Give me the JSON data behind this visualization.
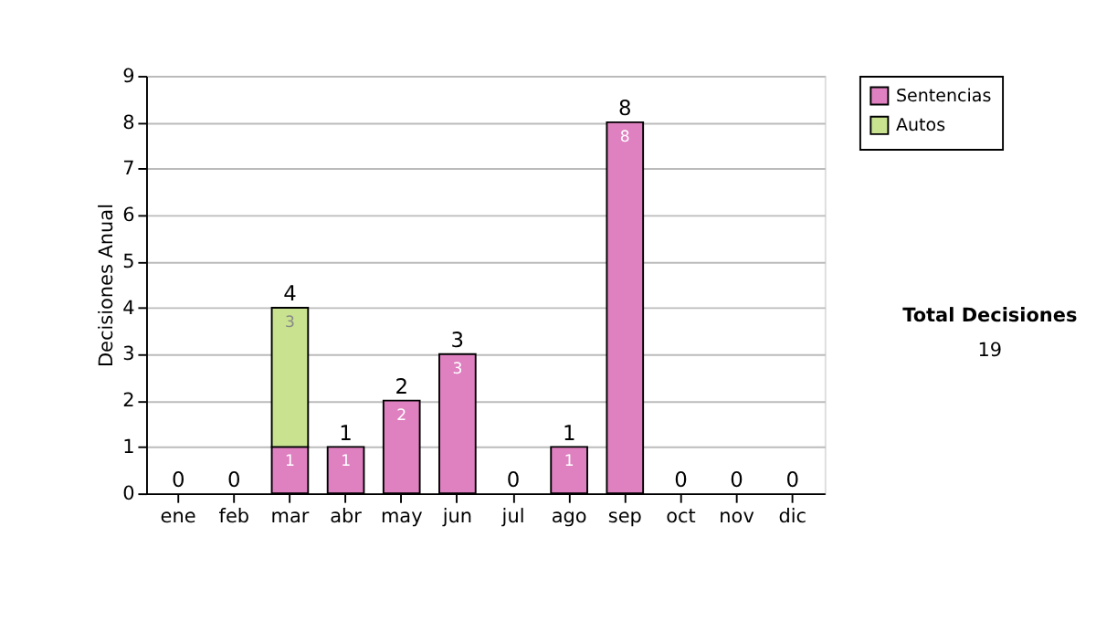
{
  "chart_data": {
    "type": "bar",
    "stacked": true,
    "ylabel": "Decisiones Anual",
    "categories": [
      "ene",
      "feb",
      "mar",
      "abr",
      "may",
      "jun",
      "jul",
      "ago",
      "sep",
      "oct",
      "nov",
      "dic"
    ],
    "series": [
      {
        "name": "Sentencias",
        "color": "#df80c0",
        "values": [
          0,
          0,
          1,
          1,
          2,
          3,
          0,
          1,
          8,
          0,
          0,
          0
        ],
        "value_labels": [
          null,
          null,
          "1",
          "1",
          "2",
          "3",
          null,
          "1",
          "8",
          null,
          null,
          null
        ]
      },
      {
        "name": "Autos",
        "color": "#c8e290",
        "values": [
          0,
          0,
          3,
          0,
          0,
          0,
          0,
          0,
          0,
          0,
          0,
          0
        ],
        "value_labels": [
          null,
          null,
          "3",
          null,
          null,
          null,
          null,
          null,
          null,
          null,
          null,
          null
        ]
      }
    ],
    "totals": [
      "0",
      "0",
      "4",
      "1",
      "2",
      "3",
      "0",
      "1",
      "8",
      "0",
      "0",
      "0"
    ],
    "ylim": [
      0,
      9
    ],
    "yticks": [
      0,
      1,
      2,
      3,
      4,
      5,
      6,
      7,
      8,
      9
    ],
    "grid": "y",
    "legend": "right",
    "annotations": [
      "Total Decisiones",
      "19"
    ]
  }
}
